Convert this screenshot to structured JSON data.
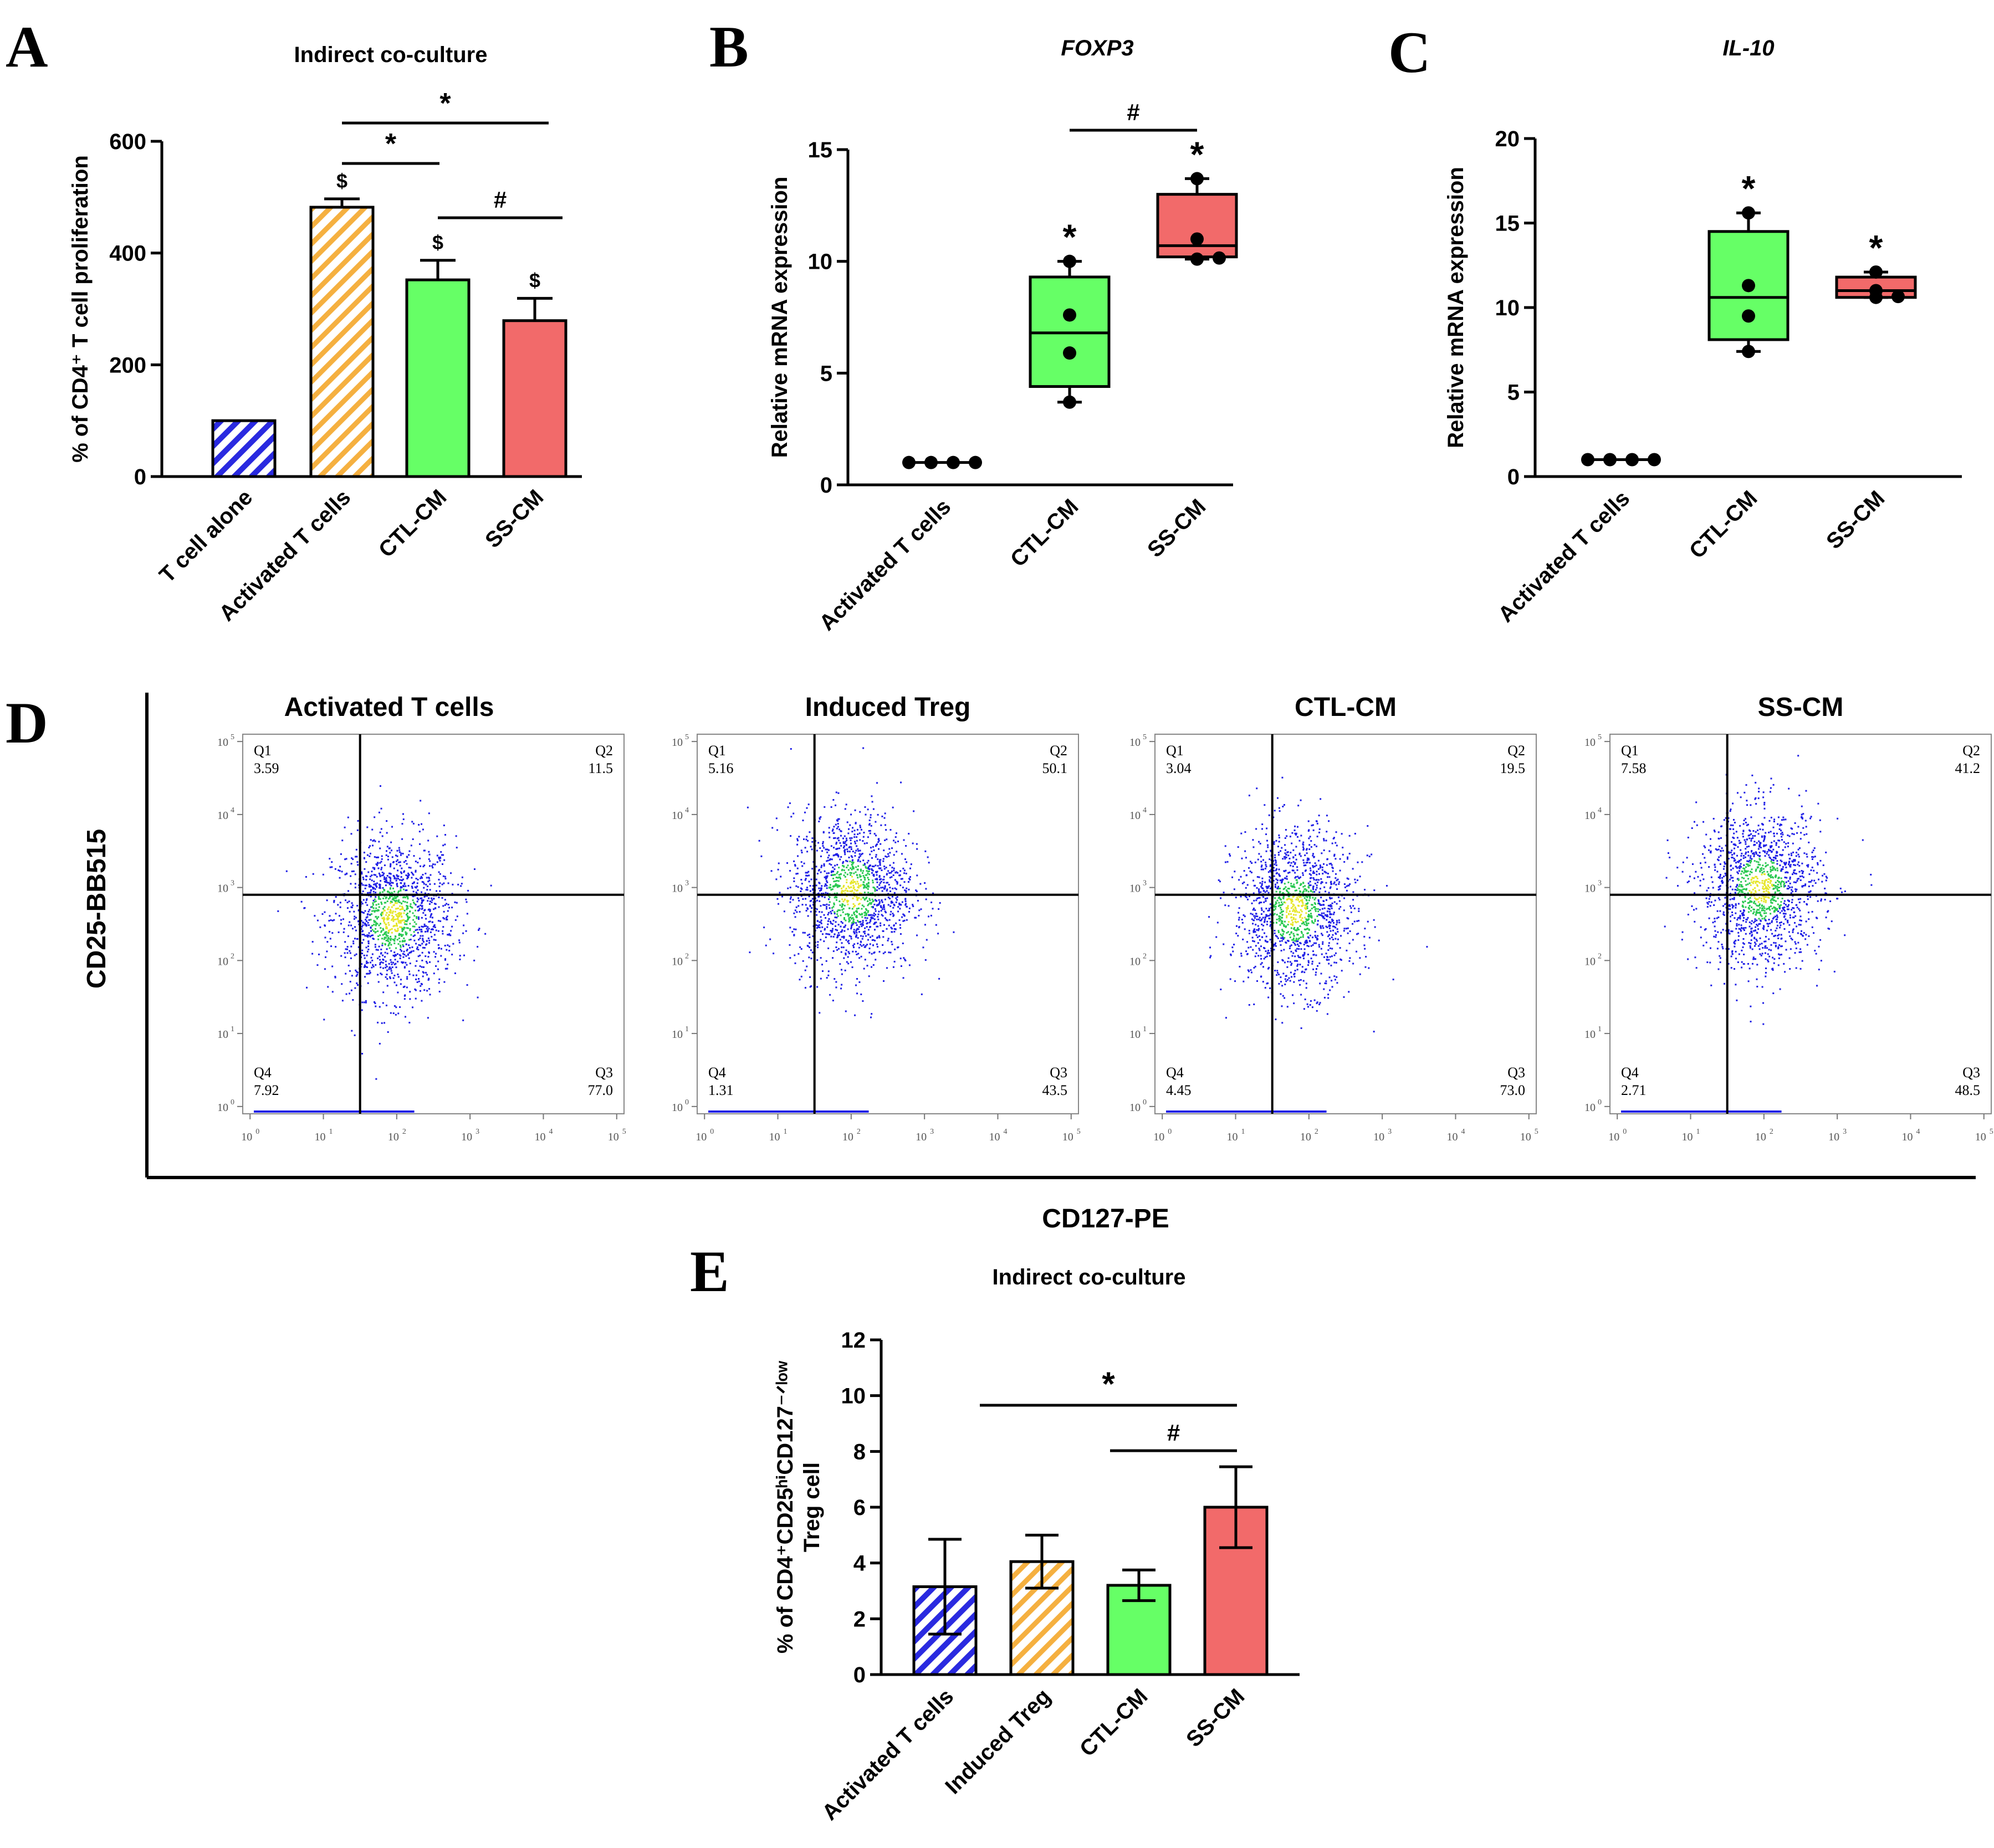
{
  "panel_letters": [
    "A",
    "B",
    "C",
    "D",
    "E"
  ],
  "colors": {
    "blue": "#2a2ae0",
    "orange": "#f5b040",
    "green": "#66ff66",
    "red": "#f26a6a",
    "axis": "#000000",
    "dot_blue": "#1e1ee6",
    "dot_green": "#28c850",
    "dot_yellow": "#e6e628"
  },
  "chart_data": [
    {
      "id": "A",
      "type": "bar",
      "title": "Indirect co-culture",
      "ylabel": "% of CD4⁺ T cell proliferation",
      "ylim": [
        0,
        600
      ],
      "yticks": [
        "0",
        "200",
        "400",
        "600"
      ],
      "categories": [
        "T cell alone",
        "Activated T cells",
        "CTL-CM",
        "SS-CM"
      ],
      "values": [
        100,
        482,
        352,
        279
      ],
      "errors": [
        0,
        15,
        35,
        40
      ],
      "fills": [
        "blue-hatch",
        "orange-hatch",
        "green",
        "red"
      ],
      "bar_marks": [
        "",
        "$",
        "$",
        "$"
      ],
      "comparisons": [
        {
          "from": 1,
          "to": 3,
          "symbol": "*"
        },
        {
          "from": 1,
          "to": 2,
          "symbol": "*"
        },
        {
          "from": 2,
          "to": 3,
          "symbol": "#"
        }
      ]
    },
    {
      "id": "B",
      "type": "box",
      "title": "FOXP3",
      "ylabel": "Relative mRNA expression",
      "ylim": [
        0,
        15
      ],
      "yticks": [
        "0",
        "5",
        "10",
        "15"
      ],
      "categories": [
        "Activated T cells",
        "CTL-CM",
        "SS-CM"
      ],
      "boxes": [
        {
          "min": 1.0,
          "q1": 1.0,
          "median": 1.0,
          "q3": 1.0,
          "max": 1.0,
          "points": [
            1,
            1,
            1,
            1
          ],
          "fill": "none",
          "mark": ""
        },
        {
          "min": 3.7,
          "q1": 4.4,
          "median": 6.8,
          "q3": 9.3,
          "max": 10.0,
          "points": [
            3.7,
            5.9,
            7.6,
            10.0
          ],
          "fill": "green",
          "mark": "*"
        },
        {
          "min": 10.1,
          "q1": 10.2,
          "median": 10.7,
          "q3": 13.0,
          "max": 13.7,
          "points": [
            10.1,
            10.15,
            11.0,
            13.7
          ],
          "fill": "red",
          "mark": "*"
        }
      ],
      "comparisons": [
        {
          "from": 1,
          "to": 2,
          "symbol": "#"
        }
      ]
    },
    {
      "id": "C",
      "type": "box",
      "title": "IL-10",
      "ylabel": "Relative mRNA expression",
      "ylim": [
        0,
        20
      ],
      "yticks": [
        "0",
        "5",
        "10",
        "15",
        "20"
      ],
      "categories": [
        "Activated T cells",
        "CTL-CM",
        "SS-CM"
      ],
      "boxes": [
        {
          "min": 1.0,
          "q1": 1.0,
          "median": 1.0,
          "q3": 1.0,
          "max": 1.0,
          "points": [
            1,
            1,
            1,
            1
          ],
          "fill": "none",
          "mark": ""
        },
        {
          "min": 7.4,
          "q1": 8.1,
          "median": 10.6,
          "q3": 14.5,
          "max": 15.6,
          "points": [
            7.4,
            9.5,
            11.3,
            15.6
          ],
          "fill": "green",
          "mark": "*"
        },
        {
          "min": 10.6,
          "q1": 10.6,
          "median": 11.0,
          "q3": 11.8,
          "max": 12.1,
          "points": [
            10.6,
            10.65,
            11.0,
            12.1
          ],
          "fill": "red",
          "mark": "*"
        }
      ],
      "comparisons": []
    },
    {
      "id": "D",
      "type": "scatter",
      "xlabel": "CD127-PE",
      "ylabel": "CD25-BB515",
      "axis_ticks": [
        "10",
        "10",
        "10",
        "10",
        "10",
        "10"
      ],
      "axis_exponents": [
        "0",
        "1",
        "2",
        "3",
        "4",
        "5"
      ],
      "plots": [
        {
          "title": "Activated T cells",
          "quadrants": [
            {
              "name": "Q1",
              "value": "3.59"
            },
            {
              "name": "Q2",
              "value": "11.5"
            },
            {
              "name": "Q3",
              "value": "77.0"
            },
            {
              "name": "Q4",
              "value": "7.92"
            }
          ],
          "gate_x_decade": 1.6,
          "gate_y_decade": 3.0,
          "center_x_decade": 2.05,
          "center_y_decade": 2.7
        },
        {
          "title": "Induced Treg",
          "quadrants": [
            {
              "name": "Q1",
              "value": "5.16"
            },
            {
              "name": "Q2",
              "value": "50.1"
            },
            {
              "name": "Q3",
              "value": "43.5"
            },
            {
              "name": "Q4",
              "value": "1.31"
            }
          ],
          "gate_x_decade": 1.6,
          "gate_y_decade": 3.0,
          "center_x_decade": 2.1,
          "center_y_decade": 3.05
        },
        {
          "title": "CTL-CM",
          "quadrants": [
            {
              "name": "Q1",
              "value": "3.04"
            },
            {
              "name": "Q2",
              "value": "19.5"
            },
            {
              "name": "Q3",
              "value": "73.0"
            },
            {
              "name": "Q4",
              "value": "4.45"
            }
          ],
          "gate_x_decade": 1.6,
          "gate_y_decade": 3.0,
          "center_x_decade": 1.9,
          "center_y_decade": 2.8
        },
        {
          "title": "SS-CM",
          "quadrants": [
            {
              "name": "Q1",
              "value": "7.58"
            },
            {
              "name": "Q2",
              "value": "41.2"
            },
            {
              "name": "Q3",
              "value": "48.5"
            },
            {
              "name": "Q4",
              "value": "2.71"
            }
          ],
          "gate_x_decade": 1.6,
          "gate_y_decade": 3.0,
          "center_x_decade": 2.05,
          "center_y_decade": 3.1
        }
      ]
    },
    {
      "id": "E",
      "type": "bar",
      "title": "Indirect co-culture",
      "ylabel_line1": "% of CD4⁺CD25ʰⁱCD127⁻ᐟˡᵒʷ",
      "ylabel_line2": "Treg cell",
      "ylim": [
        0,
        12
      ],
      "yticks": [
        "0",
        "2",
        "4",
        "6",
        "8",
        "10",
        "12"
      ],
      "categories": [
        "Activated T cells",
        "Induced Treg",
        "CTL-CM",
        "SS-CM"
      ],
      "values": [
        3.15,
        4.05,
        3.2,
        6.0
      ],
      "errors": [
        1.7,
        0.95,
        0.55,
        1.45
      ],
      "fills": [
        "blue-hatch",
        "orange-hatch",
        "green",
        "red"
      ],
      "comparisons": [
        {
          "from": 0,
          "to": 3,
          "symbol": "*"
        },
        {
          "from": 2,
          "to": 3,
          "symbol": "#"
        }
      ]
    }
  ]
}
